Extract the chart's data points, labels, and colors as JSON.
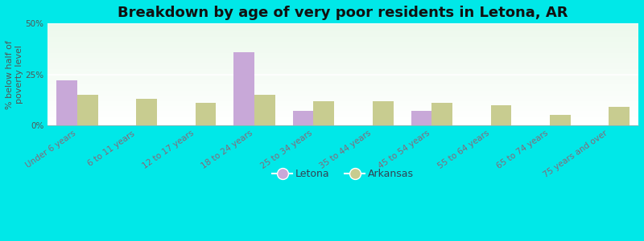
{
  "title": "Breakdown by age of very poor residents in Letona, AR",
  "ylabel": "% below half of\npoverty level",
  "categories": [
    "Under 6 years",
    "6 to 11 years",
    "12 to 17 years",
    "18 to 24 years",
    "25 to 34 years",
    "35 to 44 years",
    "45 to 54 years",
    "55 to 64 years",
    "65 to 74 years",
    "75 years and over"
  ],
  "letona_values": [
    22,
    0,
    0,
    36,
    7,
    0,
    7,
    0,
    0,
    0
  ],
  "arkansas_values": [
    15,
    13,
    11,
    15,
    12,
    12,
    11,
    10,
    5,
    9
  ],
  "letona_color": "#c8a8d8",
  "arkansas_color": "#c8cc90",
  "background_color": "#00e8e8",
  "ylim": [
    0,
    50
  ],
  "yticks": [
    0,
    25,
    50
  ],
  "ytick_labels": [
    "0%",
    "25%",
    "50%"
  ],
  "title_fontsize": 13,
  "label_fontsize": 7.5,
  "ylabel_fontsize": 8,
  "bar_width": 0.35,
  "legend_letona": "Letona",
  "legend_arkansas": "Arkansas",
  "tick_color": "#886677",
  "ylabel_color": "#555555",
  "ytick_color": "#555555"
}
